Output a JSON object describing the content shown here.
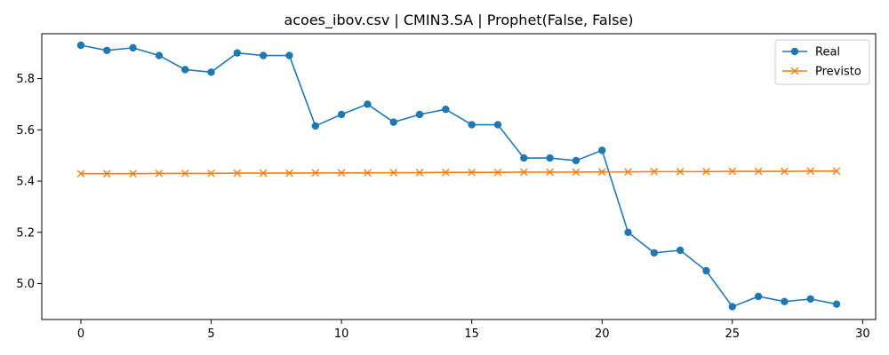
{
  "chart_data": {
    "type": "line",
    "title": "acoes_ibov.csv | CMIN3.SA | Prophet(False, False)",
    "xlabel": "",
    "ylabel": "",
    "xlim": [
      -1.5,
      30.5
    ],
    "ylim": [
      4.86,
      5.975
    ],
    "xticks": [
      0,
      5,
      10,
      15,
      20,
      25,
      30
    ],
    "yticks": [
      5.0,
      5.2,
      5.4,
      5.6,
      5.8
    ],
    "ytick_labels": [
      "5.0",
      "5.2",
      "5.4",
      "5.6",
      "5.8"
    ],
    "grid": false,
    "legend_position": "top-right",
    "x": [
      0,
      1,
      2,
      3,
      4,
      5,
      6,
      7,
      8,
      9,
      10,
      11,
      12,
      13,
      14,
      15,
      16,
      17,
      18,
      19,
      20,
      21,
      22,
      23,
      24,
      25,
      26,
      27,
      28,
      29
    ],
    "series": [
      {
        "name": "Real",
        "color": "#1f77b4",
        "marker": "circle",
        "values": [
          5.93,
          5.91,
          5.92,
          5.89,
          5.835,
          5.825,
          5.9,
          5.89,
          5.89,
          5.615,
          5.66,
          5.7,
          5.63,
          5.66,
          5.68,
          5.62,
          5.62,
          5.49,
          5.49,
          5.48,
          5.52,
          5.2,
          5.12,
          5.13,
          5.05,
          4.91,
          4.95,
          4.93,
          4.94,
          4.92
        ]
      },
      {
        "name": "Previsto",
        "color": "#ff7f0e",
        "marker": "x",
        "values": [
          5.429,
          5.429,
          5.429,
          5.43,
          5.43,
          5.43,
          5.431,
          5.431,
          5.431,
          5.432,
          5.432,
          5.432,
          5.433,
          5.433,
          5.434,
          5.434,
          5.434,
          5.435,
          5.435,
          5.435,
          5.436,
          5.436,
          5.437,
          5.437,
          5.437,
          5.438,
          5.438,
          5.438,
          5.439,
          5.439
        ]
      }
    ]
  }
}
